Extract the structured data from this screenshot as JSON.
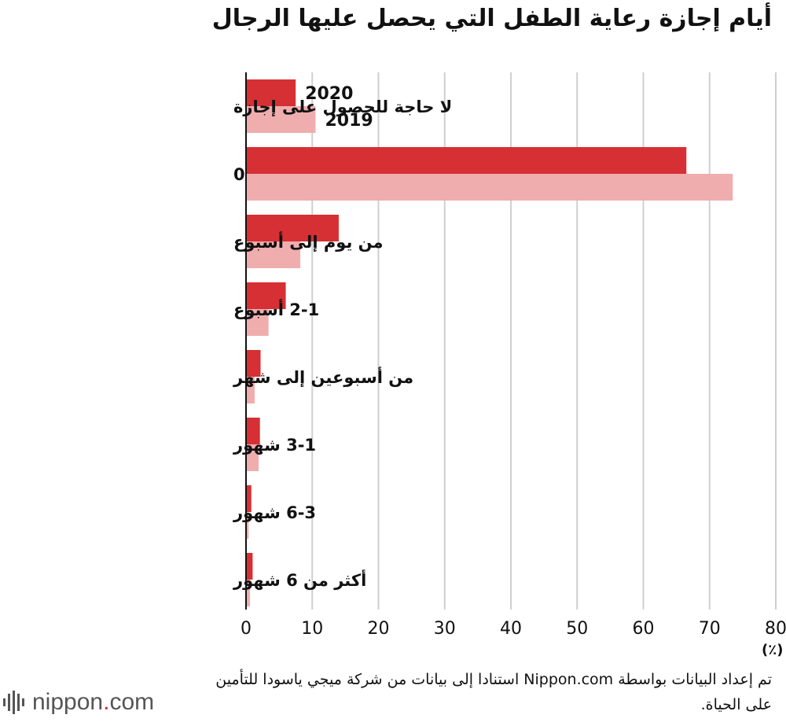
{
  "header": {
    "title": "أيام إجازة رعاية الطفل التي يحصل عليها الرجال"
  },
  "chart_data": {
    "type": "bar",
    "orientation": "horizontal",
    "title": "أيام إجازة رعاية الطفل التي يحصل عليها الرجال",
    "categories": [
      "لا حاجة للحصول على إجازة",
      "0",
      "من يوم إلى أسبوع",
      "2-1 أسبوع",
      "من أسبوعين إلى شهر",
      "3-1 شهور",
      "6-3 شهور",
      "أكثر من 6 شهور"
    ],
    "series": [
      {
        "name": "2020",
        "color": "#d63034",
        "values": [
          7.5,
          66.5,
          14.0,
          6.0,
          2.2,
          2.1,
          0.8,
          1.0
        ]
      },
      {
        "name": "2019",
        "color": "#f0adad",
        "values": [
          10.5,
          73.5,
          8.2,
          3.4,
          1.3,
          1.9,
          0.4,
          0.6
        ]
      }
    ],
    "xlim": [
      0,
      80
    ],
    "xticks": [
      "0",
      "10",
      "20",
      "30",
      "40",
      "50",
      "60",
      "70",
      "80"
    ],
    "xlabel": "(٪)",
    "grid": true,
    "legend": "inline-first-category"
  },
  "footer": {
    "source": "تم إعداد البيانات بواسطة Nippon.com استنادا إلى بيانات من شركة ميجي ياسودا للتأمين على الحياة.",
    "logo_text": "nippon",
    "logo_dot": ".",
    "logo_suffix": "com"
  }
}
